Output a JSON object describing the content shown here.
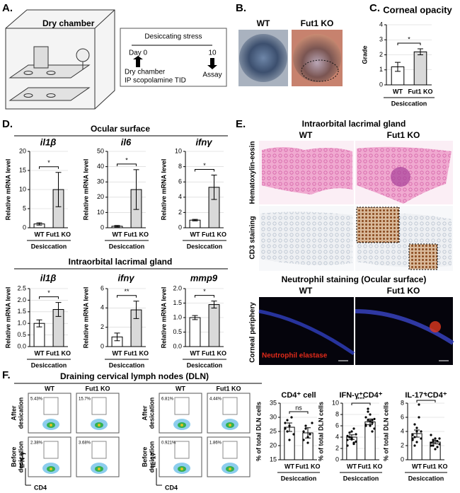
{
  "panel_labels": [
    "A.",
    "B.",
    "C.",
    "D.",
    "E.",
    "F."
  ],
  "diagram": {
    "chamber": "Dry chamber",
    "stress_title": "Desiccating stress",
    "start": "Day 0",
    "end": "10",
    "start_note": [
      "Dry chamber",
      "IP scopolamine TID"
    ],
    "end_note": "Assay"
  },
  "photos": {
    "labels": [
      "WT",
      "Fut1 KO"
    ]
  },
  "sections": {
    "ocular": "Ocular surface",
    "lacrimal": "Intraorbital lacrimal gland"
  },
  "histology": {
    "title": "Intraorbital lacrimal gland",
    "columns": [
      "WT",
      "Fut1 KO"
    ],
    "rows": [
      "Hematoxylin-eosin",
      "CD3 staining"
    ],
    "neutrophil_title": "Neutrophil staining (Ocular surface)",
    "neutrophil_columns": [
      "WT",
      "Fut1 KO"
    ],
    "neutrophil_row": "Corneal periphery",
    "stain": "Neutrophil elastase"
  },
  "flow": {
    "title": "Draining cervical lymph nodes (DLN)",
    "columns": [
      "WT",
      "Fut1 KO"
    ],
    "rows": [
      [
        "After",
        "desication"
      ],
      [
        "Before",
        "desication"
      ]
    ],
    "panels": [
      {
        "y_label": "IFN-γ",
        "x_label": "CD4",
        "percents": [
          [
            "5.43%",
            "15.7%"
          ],
          [
            "2.38%",
            "3.68%"
          ]
        ]
      },
      {
        "y_label": "IL-17",
        "x_label": "CD4",
        "percents": [
          [
            "6.81%",
            "4.44%"
          ],
          [
            "0.921%",
            "1.86%"
          ]
        ]
      }
    ]
  },
  "chart_data": [
    {
      "type": "bar",
      "title": "Corneal opacity",
      "ylabel": "Grade",
      "categories": [
        "WT",
        "Fut1 KO"
      ],
      "values": [
        1.2,
        2.2
      ],
      "errors": [
        0.3,
        0.2
      ],
      "colors": [
        "#ffffff",
        "#d9d9d9"
      ],
      "ylim": [
        0,
        4
      ],
      "yticks": [
        0,
        1,
        2,
        3,
        4
      ],
      "significance": "*",
      "group_label": "Desiccation"
    },
    {
      "type": "bar",
      "title": "il1β",
      "ylabel": "Relative mRNA level",
      "categories": [
        "WT",
        "Fut1 KO"
      ],
      "values": [
        1,
        10
      ],
      "errors": [
        0.3,
        4.5
      ],
      "colors": [
        "#ffffff",
        "#d9d9d9"
      ],
      "ylim": [
        0,
        20
      ],
      "yticks": [
        0,
        5,
        10,
        15,
        20
      ],
      "significance": "*",
      "group_label": "Desiccation"
    },
    {
      "type": "bar",
      "title": "il6",
      "ylabel": "Relative mRNA level",
      "categories": [
        "WT",
        "Fut1 KO"
      ],
      "values": [
        1,
        25
      ],
      "errors": [
        0.5,
        13
      ],
      "colors": [
        "#ffffff",
        "#d9d9d9"
      ],
      "ylim": [
        0,
        50
      ],
      "yticks": [
        0,
        10,
        20,
        30,
        40,
        50
      ],
      "significance": "*",
      "group_label": "Desiccation"
    },
    {
      "type": "bar",
      "title": "ifnγ",
      "ylabel": "Relative mRNA level",
      "categories": [
        "WT",
        "Fut1 KO"
      ],
      "values": [
        1,
        5.3
      ],
      "errors": [
        0.1,
        1.6
      ],
      "colors": [
        "#ffffff",
        "#d9d9d9"
      ],
      "ylim": [
        0,
        10
      ],
      "yticks": [
        0,
        2,
        4,
        6,
        8,
        10
      ],
      "significance": "*",
      "group_label": "Desiccation"
    },
    {
      "type": "bar",
      "title": "il1β",
      "ylabel": "Relative mRNA level",
      "categories": [
        "WT",
        "Fut1 KO"
      ],
      "values": [
        1.0,
        1.6
      ],
      "errors": [
        0.15,
        0.3
      ],
      "colors": [
        "#ffffff",
        "#d9d9d9"
      ],
      "ylim": [
        0,
        2.5
      ],
      "yticks": [
        {
          "value": 0,
          "label": "0.0"
        },
        0.5,
        {
          "value": 1,
          "label": "1.0"
        },
        1.5,
        {
          "value": 2,
          "label": "2.0"
        },
        2.5
      ],
      "significance": "*",
      "group_label": "Desiccation"
    },
    {
      "type": "bar",
      "title": "ifnγ",
      "ylabel": "Relative mRNA level",
      "categories": [
        "WT",
        "Fut1 KO"
      ],
      "values": [
        1,
        3.8
      ],
      "errors": [
        0.4,
        0.9
      ],
      "colors": [
        "#ffffff",
        "#d9d9d9"
      ],
      "ylim": [
        0,
        6
      ],
      "yticks": [
        0,
        2,
        4,
        6
      ],
      "significance": "**",
      "group_label": "Desiccation"
    },
    {
      "type": "bar",
      "title": "mmp9",
      "ylabel": "Relative mRNA level",
      "categories": [
        "WT",
        "Fut1 KO"
      ],
      "values": [
        1.0,
        1.45
      ],
      "errors": [
        0.07,
        0.12
      ],
      "colors": [
        "#ffffff",
        "#d9d9d9"
      ],
      "ylim": [
        0,
        2
      ],
      "yticks": [
        {
          "value": 0,
          "label": "0.0"
        },
        0.5,
        {
          "value": 1,
          "label": "1.0"
        },
        1.5,
        {
          "value": 2,
          "label": "2.0"
        }
      ],
      "significance": "*",
      "group_label": "Desiccation"
    },
    {
      "type": "bar",
      "title": "CD4⁺ cell",
      "ylabel": "% of total DLN cells",
      "categories": [
        "WT",
        "Fut1 KO"
      ],
      "values": [
        26.5,
        24.5
      ],
      "errors": [
        1.5,
        1.8
      ],
      "colors": [
        "#ffffff",
        "#ffffff"
      ],
      "ylim": [
        15,
        35
      ],
      "yticks": [
        15,
        20,
        25,
        30,
        35
      ],
      "significance": "ns",
      "group_label": "Desiccation",
      "points": [
        [
          28,
          25,
          27,
          30,
          24,
          26,
          29,
          22
        ],
        [
          25,
          27,
          21,
          24,
          28,
          22,
          26,
          23
        ]
      ]
    },
    {
      "type": "bar",
      "title": "IFN-γ⁺CD4⁺",
      "ylabel": "% of total DLN cells",
      "categories": [
        "WT",
        "Fut1 KO"
      ],
      "values": [
        4,
        6.7
      ],
      "errors": [
        0.4,
        0.5
      ],
      "colors": [
        "#ffffff",
        "#ffffff"
      ],
      "ylim": [
        0,
        10
      ],
      "yticks": [
        0,
        2,
        4,
        6,
        8,
        10
      ],
      "significance": "***",
      "group_label": "Desiccation",
      "points": [
        [
          3.5,
          4,
          5,
          3,
          4.5,
          2.5,
          4,
          3.8,
          5.5,
          3.2,
          4.2,
          4.8,
          3.6,
          2.8
        ],
        [
          6,
          7,
          8,
          6.5,
          5.5,
          7.5,
          9,
          6.8,
          5,
          7.2,
          6.2,
          8.5,
          6,
          7
        ]
      ]
    },
    {
      "type": "bar",
      "title": "IL-17⁺CD4⁺",
      "ylabel": "% of total DLN cells",
      "categories": [
        "WT",
        "Fut1 KO"
      ],
      "values": [
        3.7,
        2.5
      ],
      "errors": [
        0.5,
        0.25
      ],
      "colors": [
        "#ffffff",
        "#ffffff"
      ],
      "ylim": [
        0,
        8
      ],
      "yticks": [
        0,
        2,
        4,
        6,
        8
      ],
      "significance": "*",
      "group_label": "Desiccation",
      "points": [
        [
          3,
          5,
          2.5,
          7.8,
          4,
          3.5,
          2,
          4.5,
          6,
          3,
          2.8,
          3.2,
          4
        ],
        [
          2,
          2.5,
          3,
          1.8,
          2.2,
          3.5,
          2.8,
          1.5,
          2.6,
          3,
          2.4,
          2
        ]
      ]
    }
  ]
}
